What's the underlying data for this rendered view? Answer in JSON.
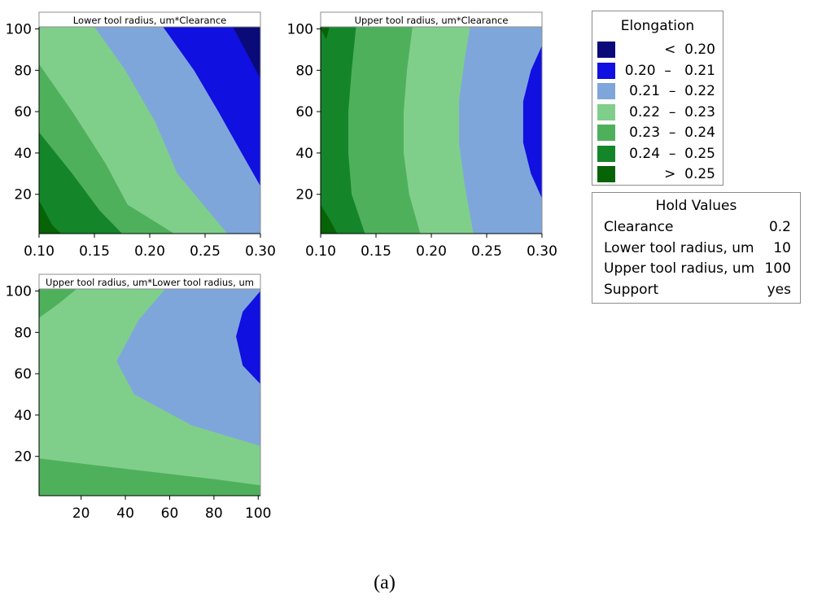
{
  "chart_data": [
    {
      "type": "contour",
      "title": "Lower tool radius, um*Clearance",
      "x_ticks": [
        "0.10",
        "0.15",
        "0.20",
        "0.25",
        "0.30"
      ],
      "y_ticks": [
        "20",
        "40",
        "60",
        "80",
        "100"
      ],
      "xlim": [
        0.1,
        0.3
      ],
      "ylim": [
        1,
        101
      ],
      "boundaries": [
        {
          "level": "0.20",
          "points": [
            [
              0.275,
              101
            ],
            [
              0.3,
              76
            ]
          ]
        },
        {
          "level": "0.21",
          "points": [
            [
              0.212,
              101
            ],
            [
              0.24,
              80
            ],
            [
              0.262,
              60
            ],
            [
              0.283,
              40
            ],
            [
              0.3,
              24
            ]
          ]
        },
        {
          "level": "0.22",
          "points": [
            [
              0.15,
              101
            ],
            [
              0.178,
              80
            ],
            [
              0.205,
              55
            ],
            [
              0.225,
              30
            ],
            [
              0.27,
              1
            ]
          ]
        },
        {
          "level": "0.23",
          "points": [
            [
              0.1,
              83
            ],
            [
              0.13,
              60
            ],
            [
              0.16,
              35
            ],
            [
              0.18,
              15
            ],
            [
              0.222,
              1
            ]
          ]
        },
        {
          "level": "0.24",
          "points": [
            [
              0.1,
              50
            ],
            [
              0.13,
              30
            ],
            [
              0.155,
              12
            ],
            [
              0.175,
              1
            ]
          ]
        },
        {
          "level": "0.25",
          "points": [
            [
              0.1,
              17
            ],
            [
              0.112,
              5
            ],
            [
              0.12,
              1
            ]
          ]
        }
      ]
    },
    {
      "type": "contour",
      "title": "Upper tool radius, um*Clearance",
      "x_ticks": [
        "0.10",
        "0.15",
        "0.20",
        "0.25",
        "0.30"
      ],
      "y_ticks": [
        "20",
        "40",
        "60",
        "80",
        "100"
      ],
      "xlim": [
        0.1,
        0.3
      ],
      "ylim": [
        1,
        101
      ],
      "boundaries": [
        {
          "level": "0.21",
          "points": [
            [
              0.3,
              92
            ],
            [
              0.29,
              80
            ],
            [
              0.283,
              65
            ],
            [
              0.283,
              45
            ],
            [
              0.29,
              30
            ],
            [
              0.3,
              18
            ]
          ]
        },
        {
          "level": "0.22",
          "points": [
            [
              0.235,
              101
            ],
            [
              0.23,
              85
            ],
            [
              0.225,
              65
            ],
            [
              0.225,
              45
            ],
            [
              0.23,
              25
            ],
            [
              0.238,
              1
            ]
          ]
        },
        {
          "level": "0.23",
          "points": [
            [
              0.183,
              101
            ],
            [
              0.178,
              80
            ],
            [
              0.175,
              60
            ],
            [
              0.175,
              40
            ],
            [
              0.18,
              20
            ],
            [
              0.19,
              1
            ]
          ]
        },
        {
          "level": "0.24",
          "points": [
            [
              0.132,
              101
            ],
            [
              0.128,
              80
            ],
            [
              0.125,
              60
            ],
            [
              0.125,
              40
            ],
            [
              0.128,
              20
            ],
            [
              0.14,
              1
            ]
          ]
        },
        {
          "level": "0.25",
          "points": [
            [
              0.1,
              100
            ],
            [
              0.105,
              95
            ],
            [
              0.108,
              101
            ]
          ]
        },
        {
          "level": "0.25b",
          "points": [
            [
              0.1,
              15
            ],
            [
              0.108,
              8
            ],
            [
              0.115,
              1
            ]
          ]
        }
      ]
    },
    {
      "type": "contour",
      "title": "Upper tool radius, um*Lower tool radius, um",
      "x_ticks": [
        "20",
        "40",
        "60",
        "80",
        "100"
      ],
      "y_ticks": [
        "20",
        "40",
        "60",
        "80",
        "100"
      ],
      "xlim": [
        1,
        101
      ],
      "ylim": [
        1,
        101
      ],
      "boundaries": [
        {
          "level": "0.21",
          "points": [
            [
              101,
              100
            ],
            [
              93,
              90
            ],
            [
              90,
              78
            ],
            [
              93,
              64
            ],
            [
              101,
              55
            ]
          ]
        },
        {
          "level": "0.22",
          "points": [
            [
              58,
              101
            ],
            [
              46,
              86
            ],
            [
              36,
              66
            ],
            [
              44,
              50
            ],
            [
              70,
              35
            ],
            [
              101,
              25
            ]
          ]
        },
        {
          "level": "0.23",
          "points": [
            [
              1,
              19
            ],
            [
              40,
              14
            ],
            [
              80,
              9
            ],
            [
              101,
              6
            ]
          ]
        },
        {
          "level": "0.23b",
          "points": [
            [
              1,
              87
            ],
            [
              10,
              94
            ],
            [
              18,
              101
            ]
          ]
        }
      ]
    }
  ],
  "legend": {
    "title": "Elongation",
    "entries": [
      {
        "label": "     <  0.20",
        "color": "#0a0a78"
      },
      {
        "label": "0.20  –   0.21",
        "color": "#1010e0"
      },
      {
        "label": " 0.21  –  0.22",
        "color": "#7fa6da"
      },
      {
        "label": "0.22  –  0.23",
        "color": "#7fcf8b"
      },
      {
        "label": "0.23  –  0.24",
        "color": "#4fb05c"
      },
      {
        "label": "0.24  –  0.25",
        "color": "#15852a"
      },
      {
        "label": "     >  0.25",
        "color": "#066306"
      }
    ]
  },
  "hold_values": {
    "title": "Hold Values",
    "rows": [
      {
        "label": "Clearance",
        "value": "0.2"
      },
      {
        "label": "Lower tool radius, um",
        "value": "10"
      },
      {
        "label": "Upper tool radius, um",
        "value": "100"
      },
      {
        "label": "Support",
        "value": "yes"
      }
    ]
  },
  "caption": "(a)"
}
